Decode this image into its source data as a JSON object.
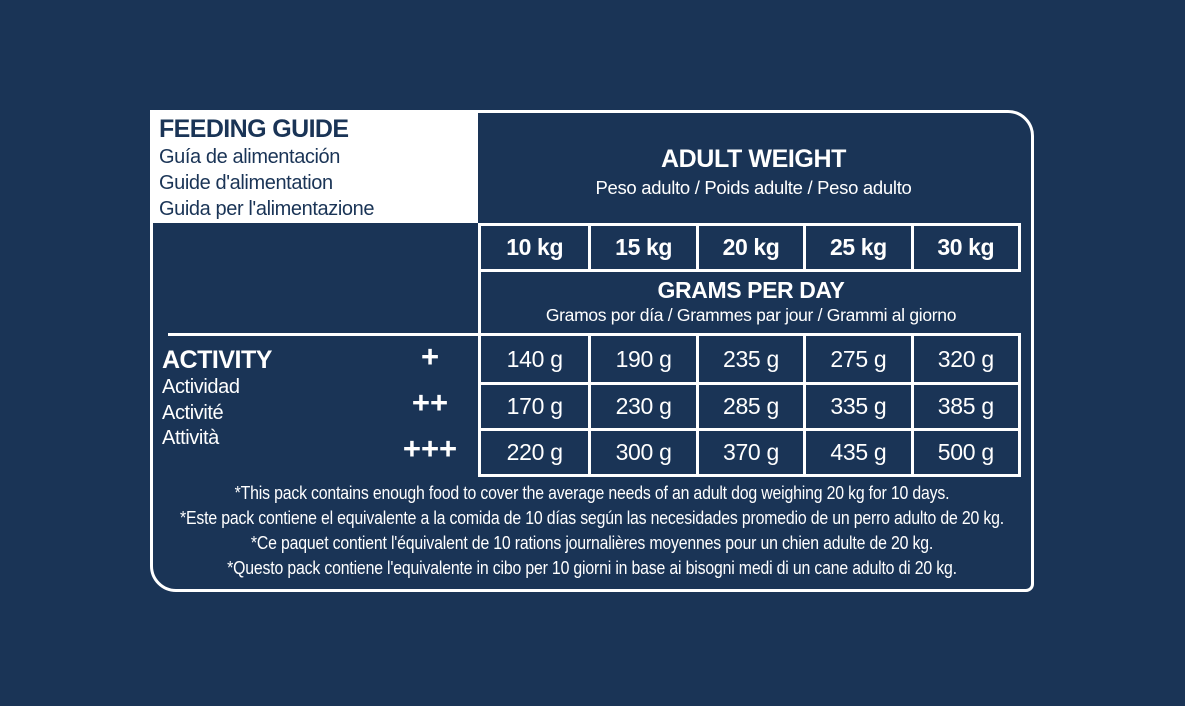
{
  "colors": {
    "background": "#1a3456",
    "line": "#ffffff",
    "header_box_bg": "#ffffff",
    "header_box_text": "#1a3456",
    "text": "#ffffff"
  },
  "feeding_guide": {
    "title": "FEEDING GUIDE",
    "subtitle_es": "Guía de alimentación",
    "subtitle_fr": "Guide d'alimentation",
    "subtitle_it": "Guida per l'alimentazione"
  },
  "adult_weight": {
    "title": "ADULT WEIGHT",
    "subtitle": "Peso adulto / Poids adulte / Peso adulto"
  },
  "weight_columns": [
    "10 kg",
    "15 kg",
    "20 kg",
    "25 kg",
    "30 kg"
  ],
  "grams_per_day": {
    "title": "GRAMS PER DAY",
    "subtitle": "Gramos por día / Grammes par jour / Grammi al giorno"
  },
  "activity": {
    "title": "ACTIVITY",
    "subtitle_es": "Actividad",
    "subtitle_fr": "Activité",
    "subtitle_it": "Attività",
    "levels": [
      "+",
      "++",
      "+++"
    ]
  },
  "feeding_rows": [
    {
      "activity_level": "+",
      "values": [
        "140 g",
        "190 g",
        "235 g",
        "275 g",
        "320 g"
      ]
    },
    {
      "activity_level": "++",
      "values": [
        "170 g",
        "230 g",
        "285 g",
        "335 g",
        "385 g"
      ]
    },
    {
      "activity_level": "+++",
      "values": [
        "220 g",
        "300 g",
        "370 g",
        "435 g",
        "500 g"
      ]
    }
  ],
  "footnotes": [
    "*This pack contains enough food to cover the average needs of an adult dog weighing 20 kg for 10 days.",
    "*Este pack contiene el equivalente a la comida de 10 días según las necesidades promedio de un perro adulto de 20 kg.",
    "*Ce paquet contient l'équivalent de 10 rations journalières moyennes pour un chien adulte de 20 kg.",
    "*Questo pack contiene l'equivalente in cibo per 10 giorni in base ai bisogni medi di un cane adulto di 20 kg."
  ]
}
